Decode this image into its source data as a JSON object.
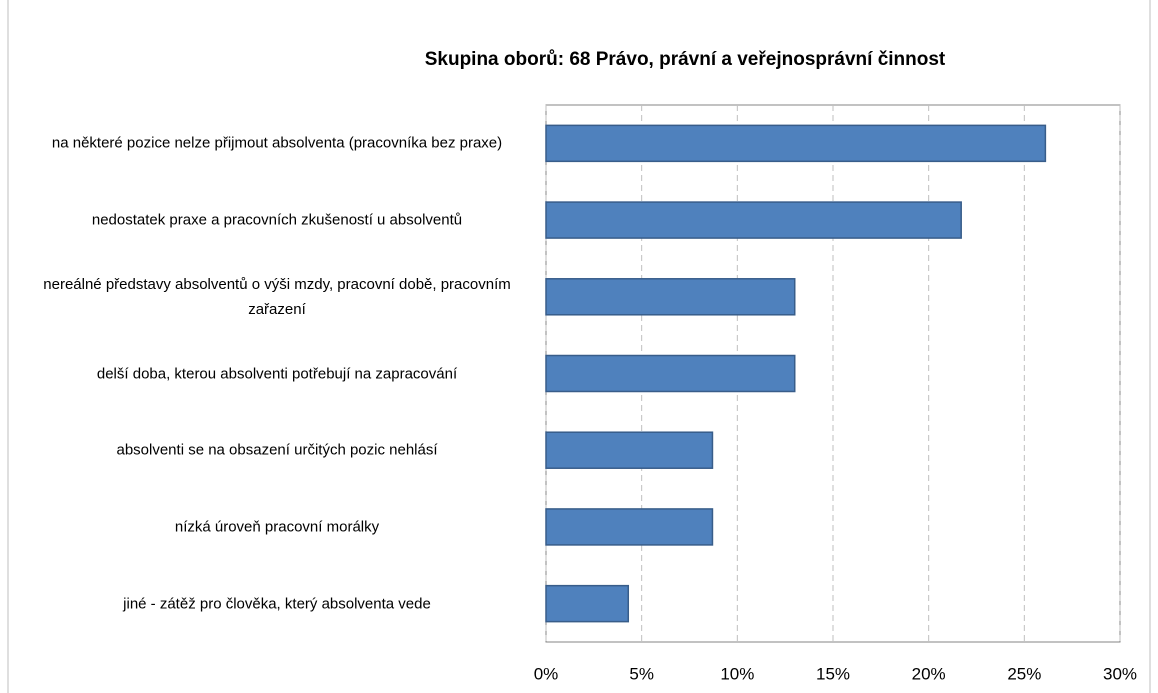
{
  "chart_data": {
    "type": "bar",
    "orientation": "horizontal",
    "title": "Skupina oborů: 68 Právo, právní a veřejnosprávní činnost",
    "categories": [
      "na některé pozice nelze přijmout absolventa (pracovníka bez praxe)",
      "nedostatek praxe a pracovních zkušeností u absolventů",
      "nereálné představy absolventů o výši mzdy, pracovní době, pracovním zařazení",
      "delší doba, kterou absolventi potřebují na zapracování",
      "absolventi se na obsazení určitých pozic nehlásí",
      "nízká úroveň pracovní morálky",
      "jiné - zátěž pro člověka, který absolventa vede"
    ],
    "values": [
      26.1,
      21.7,
      13.0,
      13.0,
      8.7,
      8.7,
      4.3
    ],
    "color": "#4f81bd",
    "xlim": [
      0,
      30
    ],
    "xticks": [
      {
        "value": 0,
        "label": "0%"
      },
      {
        "value": 5,
        "label": "5%"
      },
      {
        "value": 10,
        "label": "10%"
      },
      {
        "value": 15,
        "label": "15%"
      },
      {
        "value": 20,
        "label": "20%"
      },
      {
        "value": 25,
        "label": "25%"
      },
      {
        "value": 30,
        "label": "30%"
      }
    ],
    "grid": true
  }
}
